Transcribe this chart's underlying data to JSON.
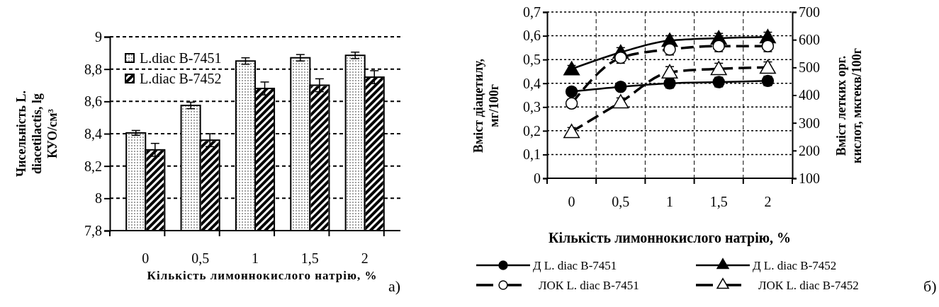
{
  "chart_data": [
    {
      "type": "bar",
      "xlabel": "Кількість лимоннокислого натрію, %",
      "ylabel": "Чисельність L. diacetilactis, lg КУО/см³",
      "categories": [
        "0",
        "0,5",
        "1",
        "1,5",
        "2"
      ],
      "series": [
        {
          "name": "L.diac B-7451",
          "color": "#ffffff",
          "values": [
            8.405,
            8.575,
            8.85,
            8.87,
            8.885
          ],
          "errors": [
            0.015,
            0.02,
            0.02,
            0.02,
            0.02
          ]
        },
        {
          "name": "L.diac B-7452",
          "color": "#ffffff",
          "values": [
            8.3,
            8.36,
            8.68,
            8.7,
            8.75
          ],
          "errors": [
            0.04,
            0.04,
            0.04,
            0.04,
            0.04
          ]
        }
      ],
      "ylim": [
        7.8,
        9
      ],
      "yticks": [
        {
          "value": 7.8,
          "label": "7,8"
        },
        8,
        {
          "value": 8.2,
          "label": "8,2"
        },
        {
          "value": 8.4,
          "label": "8,4"
        },
        {
          "value": 8.6,
          "label": "8,6"
        },
        {
          "value": 8.8,
          "label": "8,8"
        },
        9
      ],
      "grid": "y",
      "legend": "top left",
      "annotations": [
        "а)"
      ]
    },
    {
      "type": "line",
      "xlabel": "Кількість лимоннокислого натрію, %",
      "ylabel": "Вміст діацетилу, мг/100г",
      "y2label": "Вміст летких орг. кислот, мкгекв/100г",
      "categories": [
        "0",
        "0,5",
        "1",
        "1,5",
        "2"
      ],
      "series": [
        {
          "name": "Д L. diac B-7451",
          "color": "#000000",
          "marker": "circle",
          "line_style": "solid",
          "values": [
            0.365,
            0.385,
            0.4,
            0.405,
            0.41
          ],
          "errors": [
            0.015,
            0.015,
            0.02,
            0.02,
            0.02
          ]
        },
        {
          "name": "Д L. diac B-7452",
          "color": "#000000",
          "marker": "triangle",
          "line_style": "solid",
          "values": [
            0.46,
            0.53,
            0.58,
            0.59,
            0.595
          ],
          "errors": [
            0.015,
            0.02,
            0.02,
            0.02,
            0.02
          ]
        },
        {
          "name": "ЛОК L. diac B-7451",
          "color": "#000000",
          "marker": "circle",
          "line_style": "dashed",
          "axis": "y2",
          "values": [
            370,
            535,
            565,
            577,
            577
          ],
          "errors": [
            15,
            20,
            20,
            20,
            20
          ]
        },
        {
          "name": "ЛОК L. diac B-7452",
          "color": "#000000",
          "marker": "triangle",
          "line_style": "dashed",
          "axis": "y2",
          "values": [
            268,
            375,
            483,
            495,
            500
          ],
          "errors": [
            15,
            15,
            20,
            20,
            20
          ]
        }
      ],
      "ylim": [
        0,
        0.7
      ],
      "yticks": [
        0,
        {
          "value": 0.1,
          "label": "0,1"
        },
        {
          "value": 0.2,
          "label": "0,2"
        },
        {
          "value": 0.3,
          "label": "0,3"
        },
        {
          "value": 0.4,
          "label": "0,4"
        },
        {
          "value": 0.5,
          "label": "0,5"
        },
        {
          "value": 0.6,
          "label": "0,6"
        },
        {
          "value": 0.7,
          "label": "0,7"
        }
      ],
      "y2lim": [
        100,
        700
      ],
      "y2ticks": [
        100,
        200,
        300,
        400,
        500,
        600,
        700
      ],
      "grid": true,
      "legend": "bottom",
      "annotations": [
        "б)"
      ]
    }
  ]
}
